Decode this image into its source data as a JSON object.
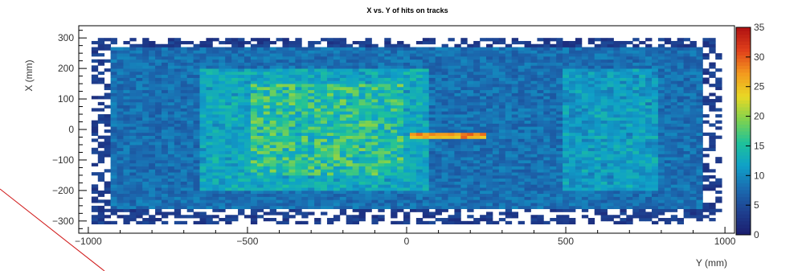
{
  "chart_data": {
    "type": "heatmap",
    "title": "X vs. Y of hits on tracks",
    "xlabel": "Y (mm)",
    "ylabel": "X (mm)",
    "xlim": [
      -1030,
      1030
    ],
    "ylim": [
      -340,
      340
    ],
    "x_ticks": [
      -1000,
      -500,
      0,
      500,
      1000
    ],
    "y_ticks": [
      300,
      200,
      100,
      0,
      -100,
      -200,
      -300
    ],
    "colorbar": {
      "range": [
        0,
        35
      ],
      "ticks": [
        35,
        30,
        25,
        20,
        15,
        10,
        5,
        0
      ],
      "colors": [
        "#1b1d6e",
        "#1e3f8f",
        "#1b6bb0",
        "#0fa0c8",
        "#1ec29a",
        "#7fd24e",
        "#e9d925",
        "#f39a1e",
        "#e0401b",
        "#b01212"
      ]
    },
    "hit_region": {
      "y_range": [
        -990,
        990
      ],
      "x_range": [
        -310,
        300
      ],
      "dense_y_range": [
        -930,
        930
      ],
      "dense_x_range": [
        -260,
        270
      ],
      "peak_region": {
        "y_range": [
          -500,
          0
        ],
        "x_range": [
          -150,
          150
        ],
        "value": 20
      },
      "typical_value": 8,
      "strip_x": -20,
      "strip_y_range": [
        0,
        250
      ]
    }
  },
  "labels": {
    "title": "X vs. Y of hits on tracks",
    "xlabel": "Y (mm)",
    "ylabel": "X (mm)"
  }
}
